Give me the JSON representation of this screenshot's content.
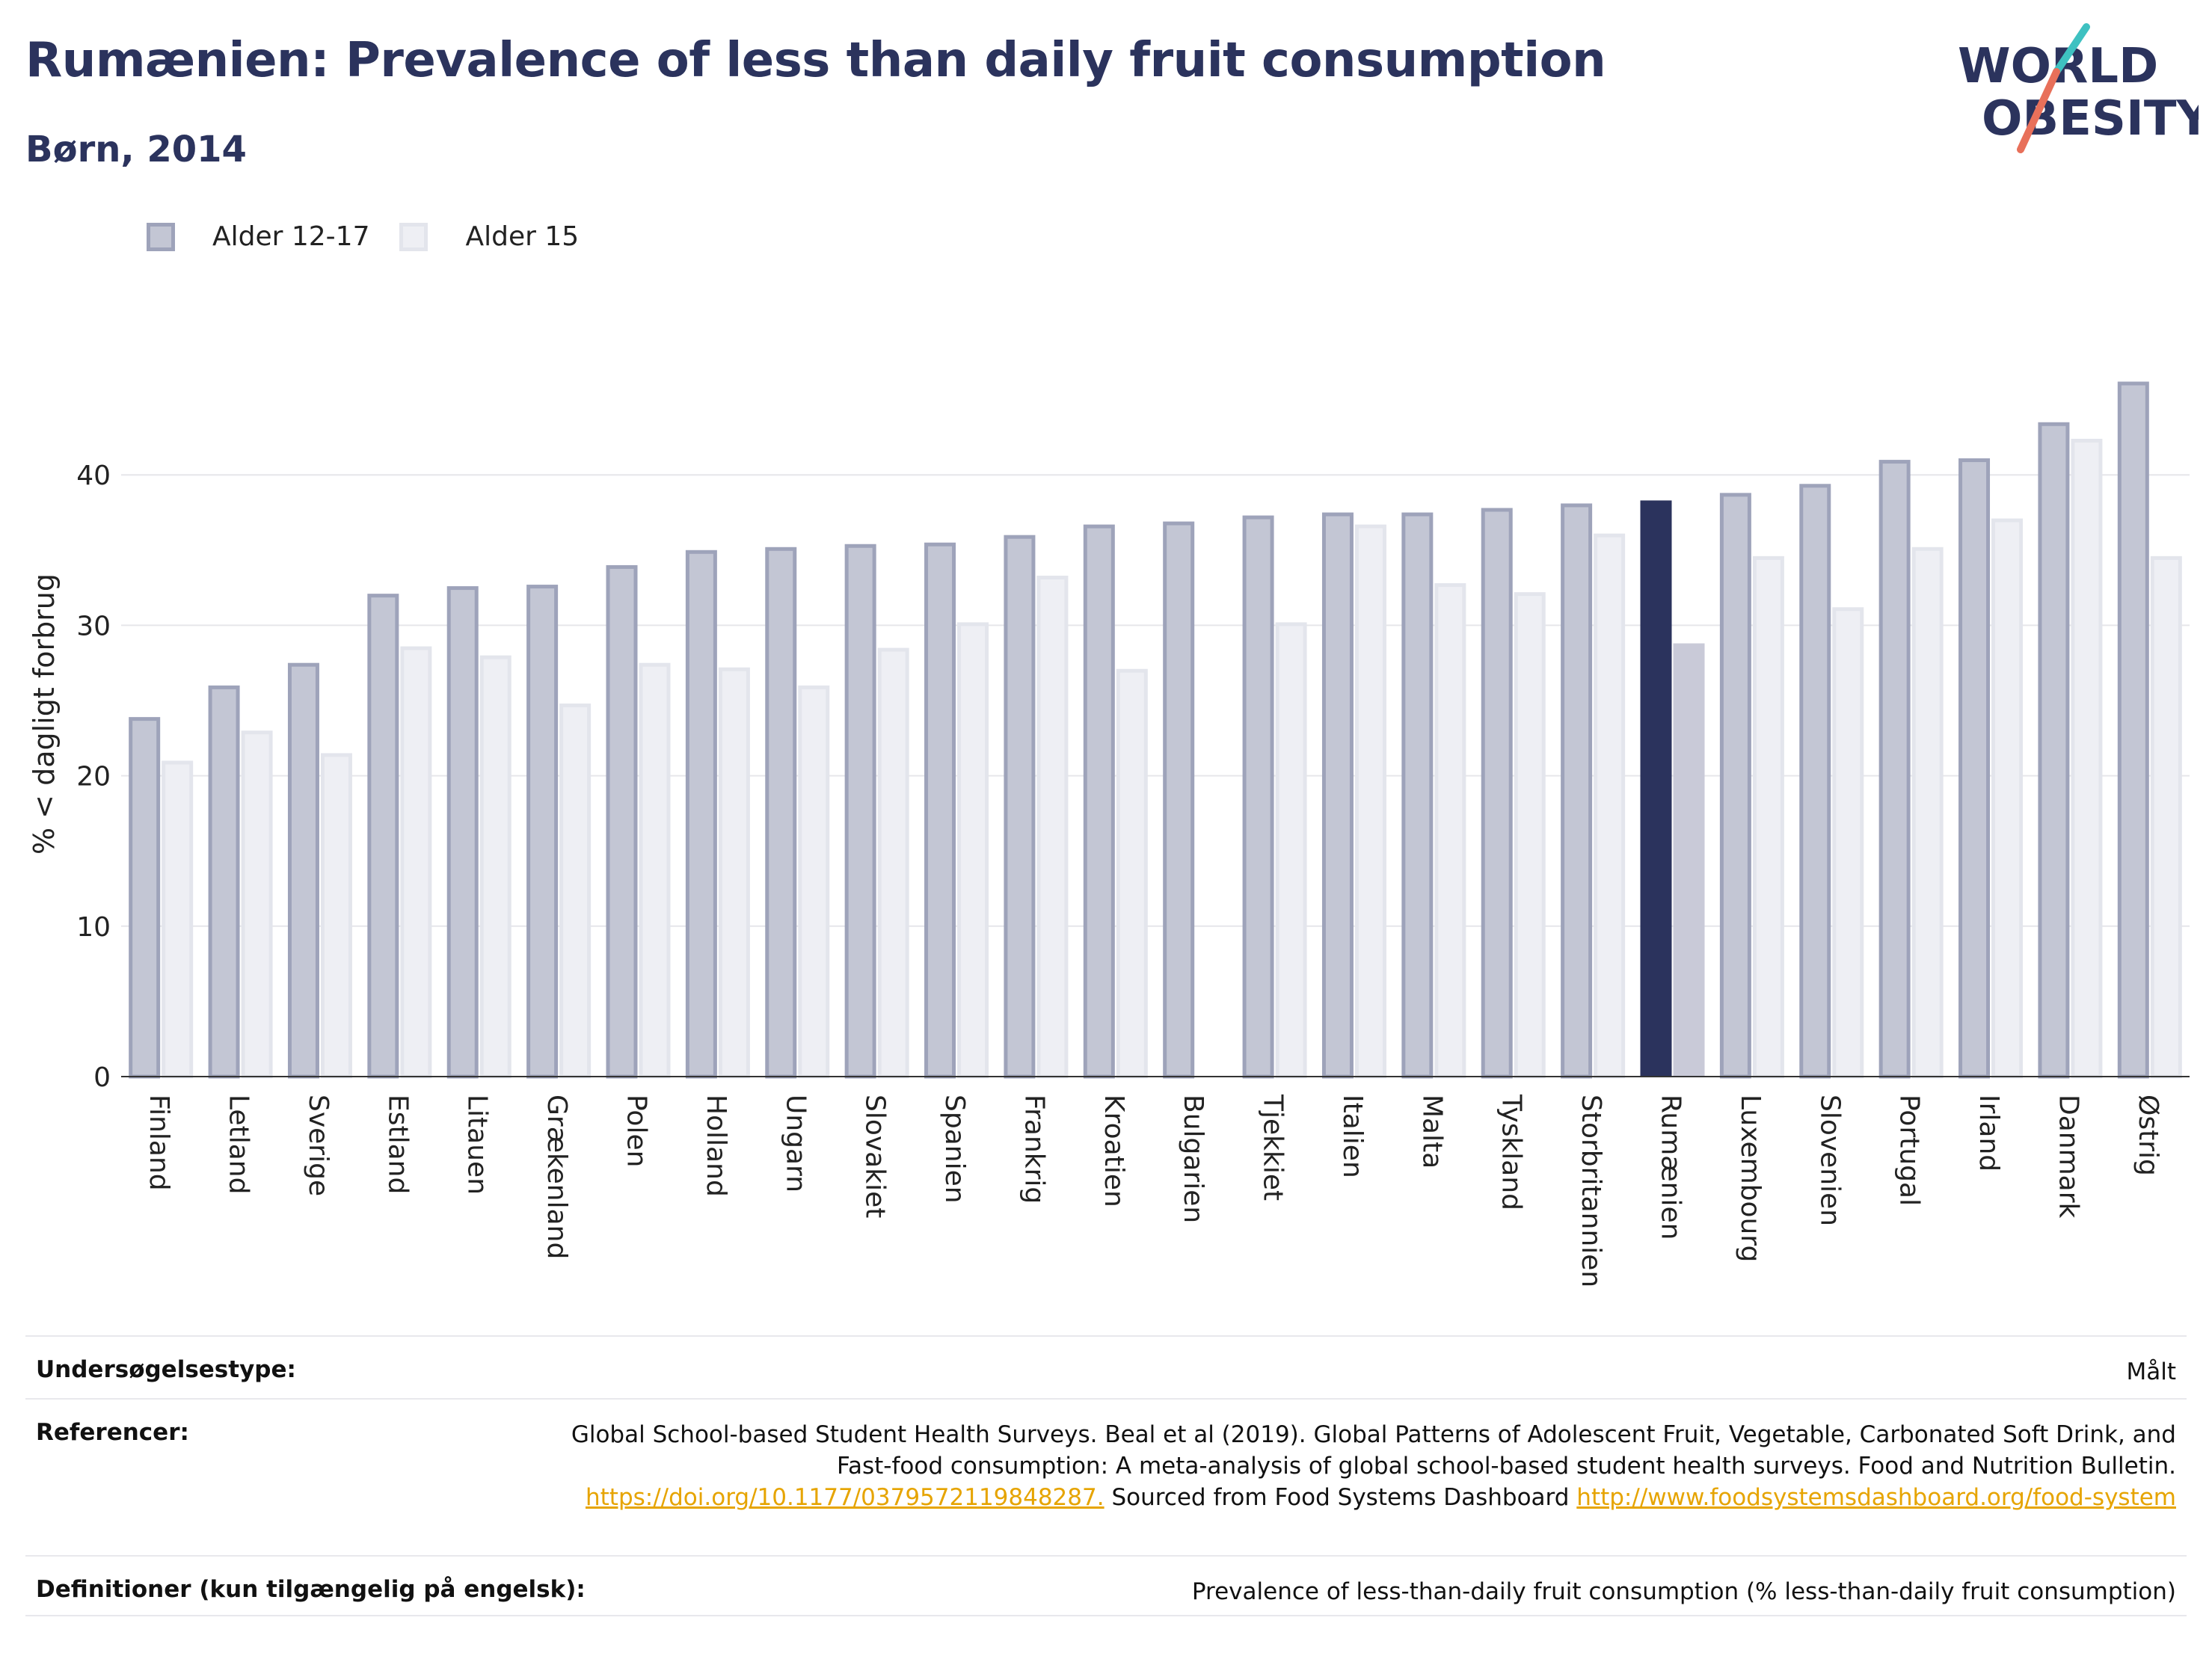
{
  "header": {
    "title": "Rumænien: Prevalence of less than daily fruit consumption",
    "subtitle": "Børn, 2014"
  },
  "logo": {
    "line1": "WORLD",
    "line2": "OBESITY"
  },
  "colors": {
    "series_a_fill": "#c3c6d4",
    "series_a_stroke": "#9ea3ba",
    "series_b_fill": "#eeeff4",
    "series_b_stroke": "#e3e5ec",
    "highlight_a": "#2b335d",
    "highlight_b": "#c9cad8",
    "text": "#2b335d",
    "logo_teal": "#3ec1c1",
    "logo_coral": "#e8705a"
  },
  "chart_data": {
    "type": "bar",
    "title": "Rumænien: Prevalence of less than daily fruit consumption",
    "subtitle": "Børn, 2014",
    "ylabel": "% < dagligt forbrug",
    "xlabel": "",
    "ylim": [
      0,
      50
    ],
    "yticks": [
      0,
      10,
      20,
      30,
      40
    ],
    "grid": true,
    "legend_position": "top-left",
    "highlight_category": "Rumænien",
    "categories": [
      "Finland",
      "Letland",
      "Sverige",
      "Estland",
      "Litauen",
      "Grækenland",
      "Polen",
      "Holland",
      "Ungarn",
      "Slovakiet",
      "Spanien",
      "Frankrig",
      "Kroatien",
      "Bulgarien",
      "Tjekkiet",
      "Italien",
      "Malta",
      "Tyskland",
      "Storbritannien",
      "Rumænien",
      "Luxembourg",
      "Slovenien",
      "Portugal",
      "Irland",
      "Danmark",
      "Østrig"
    ],
    "series": [
      {
        "name": "Alder 12-17",
        "values": [
          23.9,
          26.0,
          27.5,
          32.1,
          32.6,
          32.7,
          34.0,
          35.0,
          35.2,
          35.4,
          35.5,
          36.0,
          36.7,
          36.9,
          37.3,
          37.5,
          37.5,
          37.8,
          38.1,
          38.3,
          38.8,
          39.4,
          41.0,
          41.1,
          43.5,
          46.2
        ]
      },
      {
        "name": "Alder 15",
        "values": [
          21.0,
          23.0,
          21.5,
          28.6,
          28.0,
          24.8,
          27.5,
          27.2,
          26.0,
          28.5,
          30.2,
          33.3,
          27.1,
          null,
          30.2,
          36.7,
          32.8,
          32.2,
          36.1,
          28.8,
          34.6,
          31.2,
          35.2,
          37.1,
          42.4,
          34.6
        ]
      }
    ]
  },
  "meta": {
    "survey_label": "Undersøgelsestype:",
    "survey_value": "Målt",
    "references_label": "Referencer:",
    "references_text": "Global School-based Student Health Surveys. Beal et al (2019). Global Patterns of Adolescent Fruit, Vegetable, Carbonated Soft Drink, and Fast-food consumption: A meta-analysis of global school-based student health surveys. Food and Nutrition Bulletin.",
    "references_link1": "https://doi.org/10.1177/0379572119848287.",
    "references_mid": "Sourced from Food Systems Dashboard",
    "references_link2": "http://www.foodsystemsdashboard.org/food-system",
    "definitions_label": "Definitioner (kun tilgængelig på engelsk):",
    "definitions_value": "Prevalence of less-than-daily fruit consumption (% less-than-daily fruit consumption)"
  }
}
